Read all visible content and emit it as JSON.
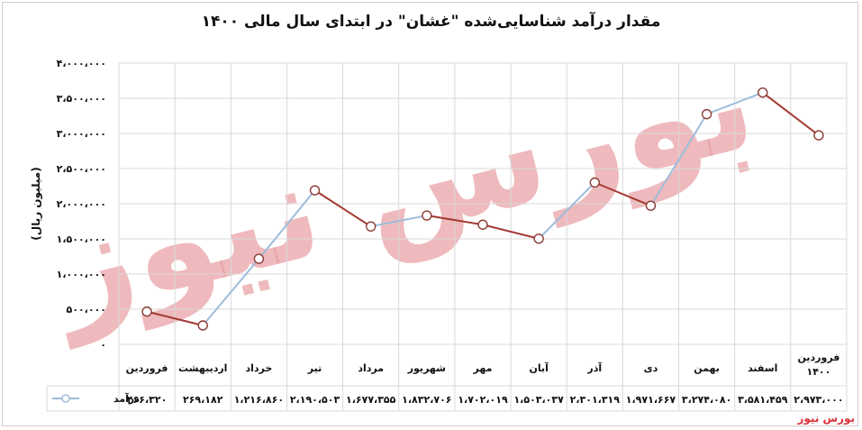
{
  "title": "مقدار درآمد شناسایی‌شده \"غشان\" در ابتدای سال مالی ۱۴۰۰",
  "brand": "بورس نیوز",
  "watermark": "بورس نیوز",
  "chart_data": {
    "type": "line",
    "title": "مقدار درآمد شناسایی‌شده \"غشان\" در ابتدای سال مالی ۱۴۰۰",
    "ylabel": "(میلیون ریال)",
    "xlabel": "",
    "ylim": [
      0,
      4000000
    ],
    "yticks": [
      0,
      500000,
      1000000,
      1500000,
      2000000,
      2500000,
      3000000,
      3500000,
      4000000
    ],
    "ytick_labels": [
      "۰",
      "۵۰۰،۰۰۰",
      "۱،۰۰۰،۰۰۰",
      "۱،۵۰۰،۰۰۰",
      "۲،۰۰۰،۰۰۰",
      "۲،۵۰۰،۰۰۰",
      "۳،۰۰۰،۰۰۰",
      "۳،۵۰۰،۰۰۰",
      "۴،۰۰۰،۰۰۰"
    ],
    "grid": true,
    "legend_position": "bottom-left (data table)",
    "categories": [
      "فروردین",
      "اردیبهشت",
      "خرداد",
      "تیر",
      "مرداد",
      "شهریور",
      "مهر",
      "آبان",
      "آذر",
      "دی",
      "بهمن",
      "اسفند",
      "فروردین ۱۴۰۰"
    ],
    "series": [
      {
        "name": "درآمد",
        "color": "#9dbcdb",
        "values": [
          466320,
          269182,
          1216860,
          2190503,
          1677355,
          1832706,
          1702019,
          1503037,
          2301319,
          1971667,
          3274080,
          3581459,
          2973000
        ],
        "value_labels": [
          "۴۶۶،۳۲۰",
          "۲۶۹،۱۸۲",
          "۱،۲۱۶،۸۶۰",
          "۲،۱۹۰،۵۰۳",
          "۱،۶۷۷،۳۵۵",
          "۱،۸۳۲،۷۰۶",
          "۱،۷۰۲،۰۱۹",
          "۱،۵۰۳،۰۳۷",
          "۲،۳۰۱،۳۱۹",
          "۱،۹۷۱،۶۶۷",
          "۳،۲۷۴،۰۸۰",
          "۳،۵۸۱،۴۵۹",
          "۲،۹۷۳،۰۰۰"
        ]
      }
    ],
    "decrease_color": "#a33a32",
    "marker_fill": "#ffffff"
  }
}
